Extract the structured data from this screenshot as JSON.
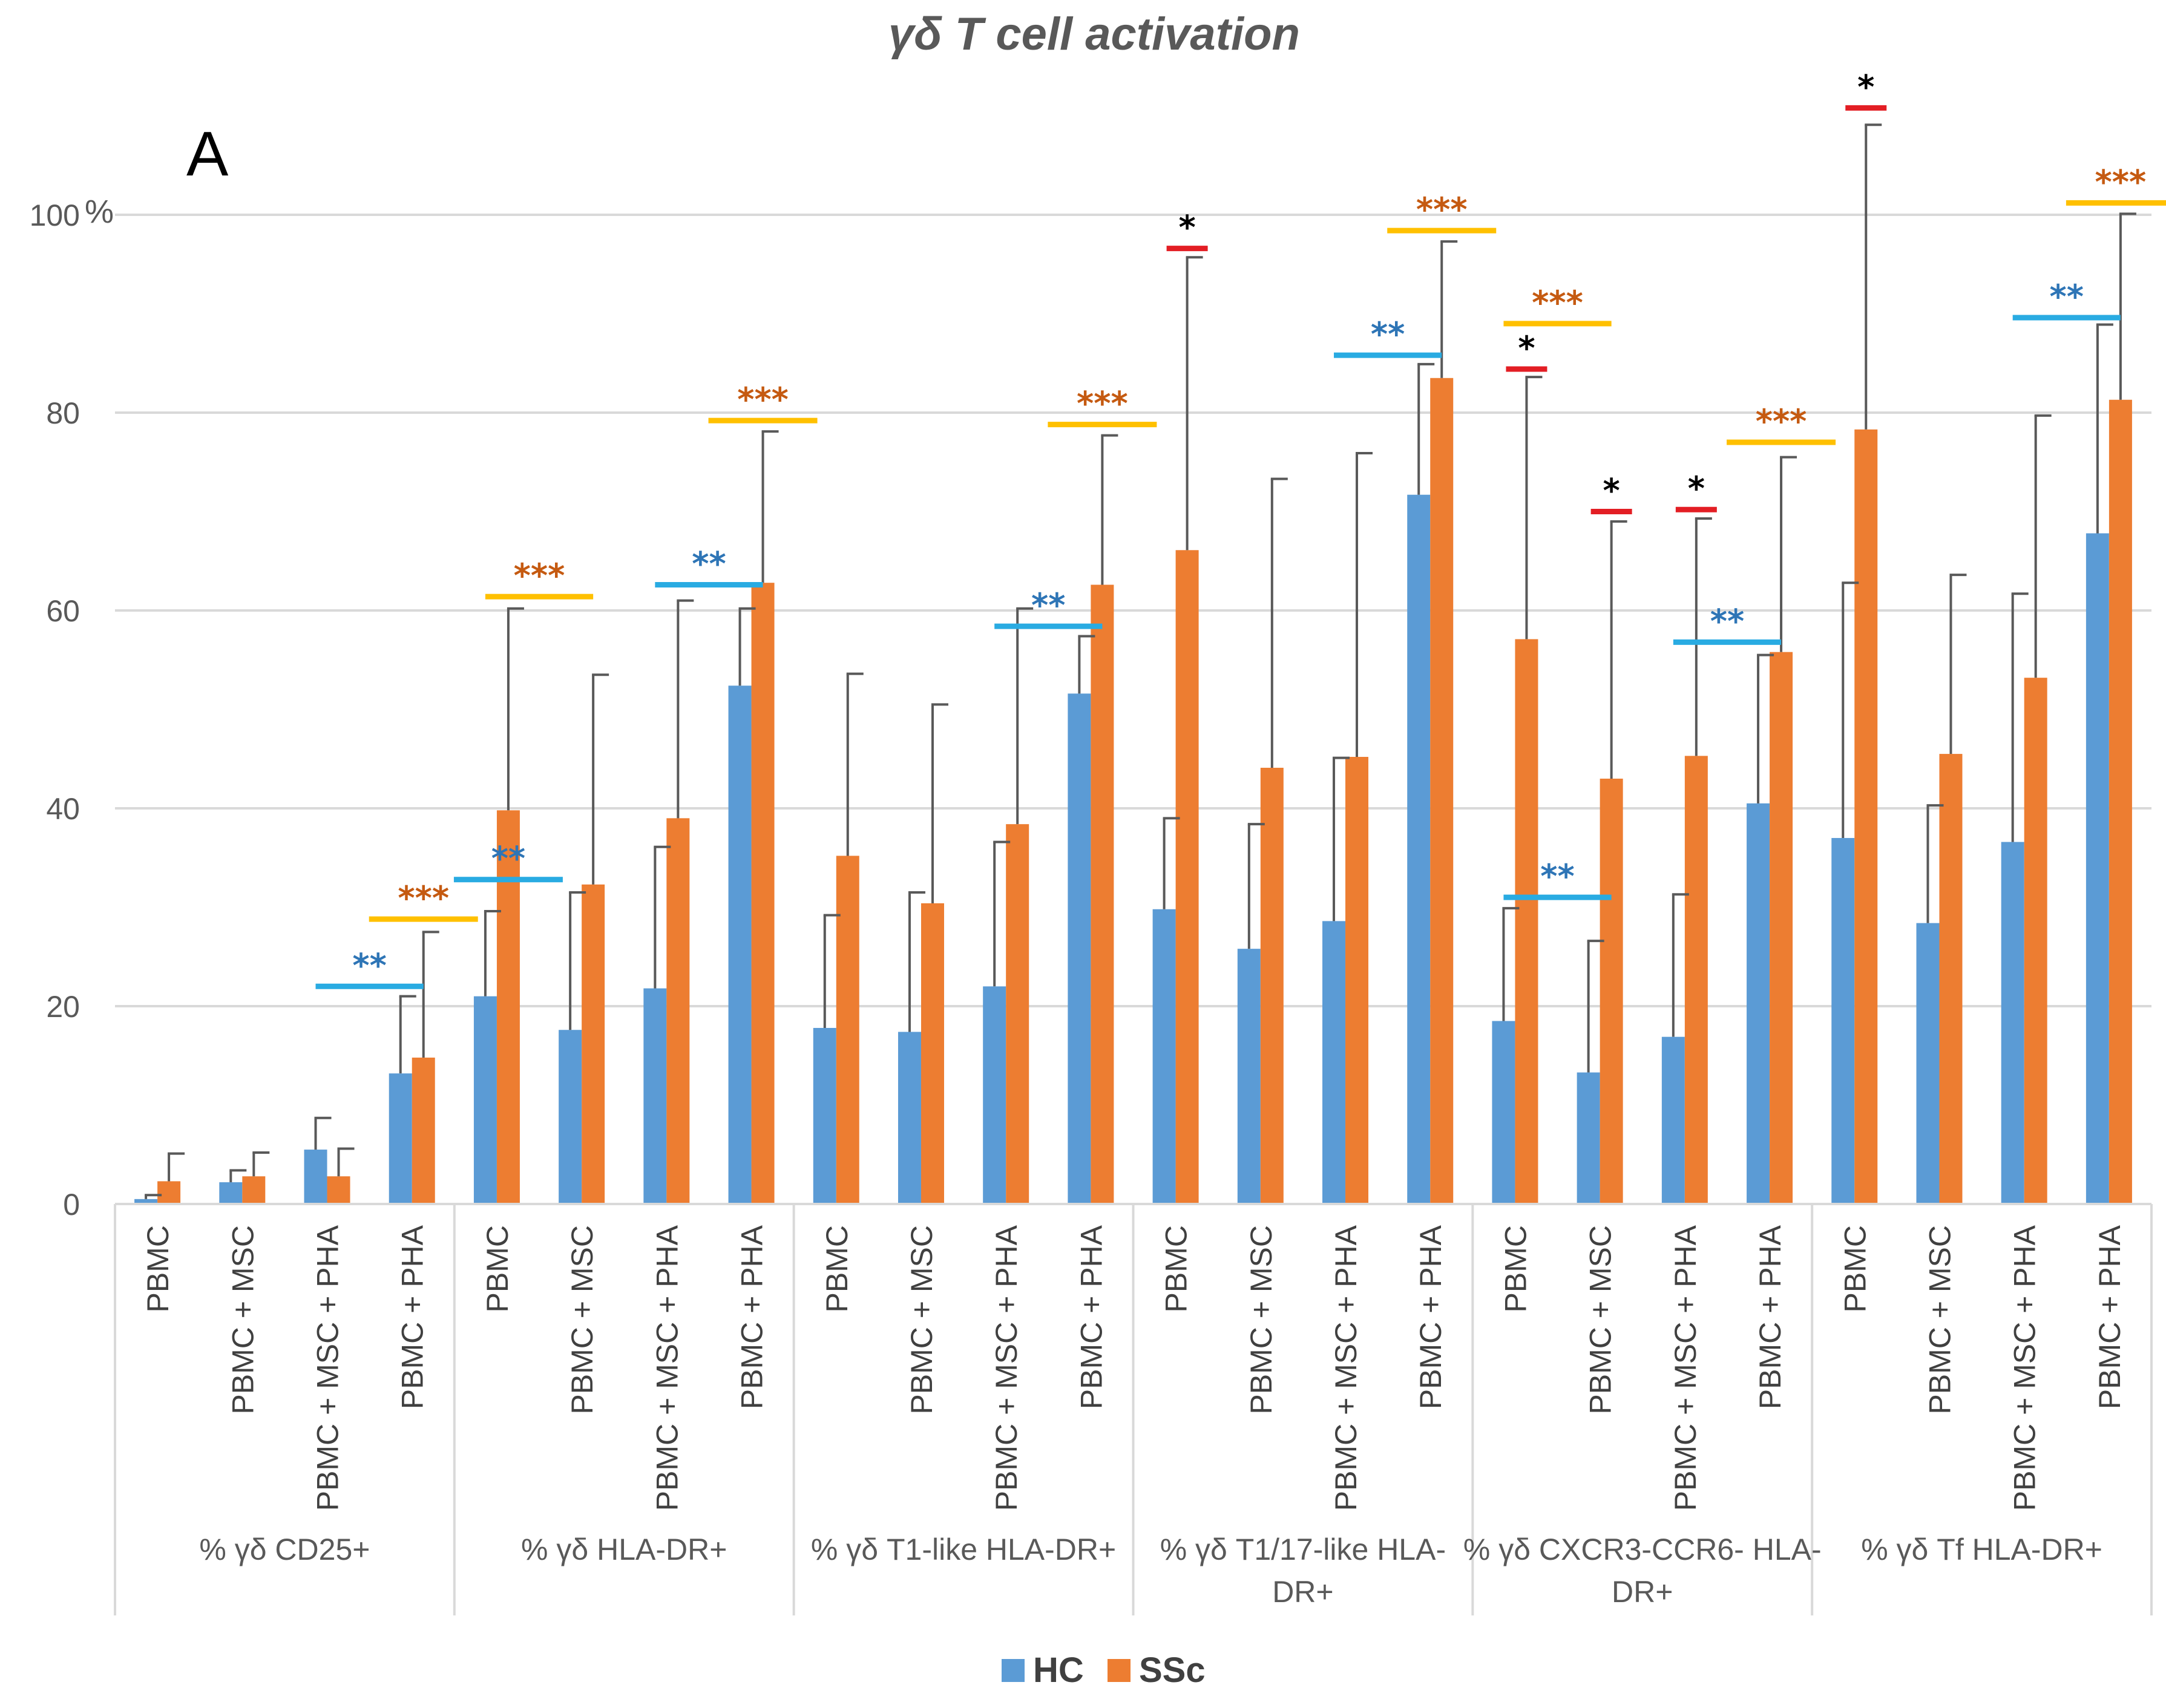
{
  "chart_data": {
    "type": "bar",
    "title": "γδ T cell activation",
    "panel_label": "A",
    "ylabel": "%",
    "ylim": [
      0,
      100
    ],
    "yticks": [
      0,
      20,
      40,
      60,
      80,
      100
    ],
    "grid": true,
    "legend_position": "bottom-center",
    "conditions": [
      "PBMC",
      "PBMC + MSC",
      "PBMC + MSC + PHA",
      "PBMC + PHA"
    ],
    "groups": [
      {
        "label_lines": [
          "% γδ CD25+"
        ],
        "HC": [
          0.5,
          2.2,
          5.5,
          13.2
        ],
        "SSc": [
          2.3,
          2.8,
          2.8,
          14.8
        ],
        "HC_err": [
          0.4,
          1.2,
          3.2,
          7.8
        ],
        "SSc_err": [
          2.8,
          2.4,
          2.8,
          12.7
        ]
      },
      {
        "label_lines": [
          "% γδ HLA-DR+"
        ],
        "HC": [
          21.0,
          17.6,
          21.8,
          52.4
        ],
        "SSc": [
          39.8,
          32.3,
          39.0,
          62.8
        ],
        "HC_err": [
          8.6,
          13.9,
          14.3,
          7.8
        ],
        "SSc_err": [
          20.4,
          21.2,
          22.0,
          15.3
        ]
      },
      {
        "label_lines": [
          "% γδ T1-like HLA-DR+"
        ],
        "HC": [
          17.8,
          17.4,
          22.0,
          51.6
        ],
        "SSc": [
          35.2,
          30.4,
          38.4,
          62.6
        ],
        "HC_err": [
          11.4,
          14.1,
          14.6,
          5.8
        ],
        "SSc_err": [
          18.4,
          20.1,
          21.8,
          15.1
        ]
      },
      {
        "label_lines": [
          "%  γδ T1/17-like HLA-",
          "DR+"
        ],
        "HC": [
          29.8,
          25.8,
          28.6,
          71.7
        ],
        "SSc": [
          66.1,
          44.1,
          45.2,
          83.5
        ],
        "HC_err": [
          9.2,
          12.6,
          16.5,
          13.2
        ],
        "SSc_err": [
          29.6,
          29.2,
          30.7,
          13.8
        ]
      },
      {
        "label_lines": [
          "% γδ CXCR3-CCR6- HLA-",
          "DR+"
        ],
        "HC": [
          18.5,
          13.3,
          16.9,
          40.5
        ],
        "SSc": [
          57.1,
          43.0,
          45.3,
          55.8
        ],
        "HC_err": [
          11.4,
          13.3,
          14.4,
          15.0
        ],
        "SSc_err": [
          26.5,
          26.0,
          24.0,
          19.7
        ]
      },
      {
        "label_lines": [
          "%  γδ Tf HLA-DR+"
        ],
        "HC": [
          37.0,
          28.4,
          36.6,
          67.8
        ],
        "SSc": [
          78.3,
          45.5,
          53.2,
          81.3
        ],
        "HC_err": [
          25.8,
          11.9,
          25.1,
          21.1
        ],
        "SSc_err": [
          30.8,
          18.1,
          26.5,
          18.8
        ]
      }
    ],
    "series": [
      {
        "name": "HC",
        "color": "#5B9BD5"
      },
      {
        "name": "SSc",
        "color": "#ED7D31"
      }
    ],
    "annotations": [
      {
        "group": 0,
        "from_bar": 2,
        "to_bar": 3,
        "y": 22.0,
        "text": "**",
        "color": "#29ABE2",
        "text_color": "#2E75B6"
      },
      {
        "group": 0,
        "from_bar": 3,
        "to_bar": 3,
        "y": 28.8,
        "text": "***",
        "color": "#FFC000",
        "text_color": "#C55A11"
      },
      {
        "group": 1,
        "from_bar": 0,
        "to_bar": 0,
        "y": 32.8,
        "text": "**",
        "color": "#29ABE2",
        "text_color": "#2E75B6"
      },
      {
        "group": 1,
        "from_bar": 0,
        "to_bar": 1,
        "y": 61.4,
        "text": "***",
        "color": "#FFC000",
        "text_color": "#C55A11"
      },
      {
        "group": 1,
        "from_bar": 2,
        "to_bar": 3,
        "y": 62.6,
        "text": "**",
        "color": "#29ABE2",
        "text_color": "#2E75B6"
      },
      {
        "group": 1,
        "from_bar": 3,
        "to_bar": 3,
        "y": 79.2,
        "text": "***",
        "color": "#FFC000",
        "text_color": "#C55A11"
      },
      {
        "group": 2,
        "from_bar": 2,
        "to_bar": 3,
        "y": 58.4,
        "text": "**",
        "color": "#29ABE2",
        "text_color": "#2E75B6"
      },
      {
        "group": 2,
        "from_bar": 3,
        "to_bar": 3,
        "y": 78.8,
        "text": "***",
        "color": "#FFC000",
        "text_color": "#C55A11"
      },
      {
        "group": 3,
        "from_bar": 0,
        "to_bar": 0,
        "y": 96.6,
        "text": "*",
        "color": "#E31E24",
        "text_color": "#000000"
      },
      {
        "group": 3,
        "from_bar": 2,
        "to_bar": 3,
        "y": 85.8,
        "text": "**",
        "color": "#29ABE2",
        "text_color": "#2E75B6"
      },
      {
        "group": 3,
        "from_bar": 3,
        "to_bar": 3,
        "y": 98.4,
        "text": "***",
        "color": "#FFC000",
        "text_color": "#C55A11"
      },
      {
        "group": 4,
        "from_bar": 0,
        "to_bar": 0,
        "y": 84.4,
        "text": "*",
        "color": "#E31E24",
        "text_color": "#000000"
      },
      {
        "group": 4,
        "from_bar": 0,
        "to_bar": 1,
        "y": 89.0,
        "text": "***",
        "color": "#FFC000",
        "text_color": "#C55A11"
      },
      {
        "group": 4,
        "from_bar": 0,
        "to_bar": 1,
        "y": 31.0,
        "text": "**",
        "color": "#29ABE2",
        "text_color": "#2E75B6"
      },
      {
        "group": 4,
        "from_bar": 1,
        "to_bar": 1,
        "y": 70.0,
        "text": "*",
        "color": "#E31E24",
        "text_color": "#000000"
      },
      {
        "group": 4,
        "from_bar": 2,
        "to_bar": 2,
        "y": 70.2,
        "text": "*",
        "color": "#E31E24",
        "text_color": "#000000"
      },
      {
        "group": 4,
        "from_bar": 2,
        "to_bar": 3,
        "y": 56.8,
        "text": "**",
        "color": "#29ABE2",
        "text_color": "#2E75B6"
      },
      {
        "group": 4,
        "from_bar": 3,
        "to_bar": 3,
        "y": 77.0,
        "text": "***",
        "color": "#FFC000",
        "text_color": "#C55A11"
      },
      {
        "group": 5,
        "from_bar": 0,
        "to_bar": 0,
        "y": 110.8,
        "text": "*",
        "color": "#E31E24",
        "text_color": "#000000"
      },
      {
        "group": 5,
        "from_bar": 2,
        "to_bar": 3,
        "y": 89.6,
        "text": "**",
        "color": "#29ABE2",
        "text_color": "#2E75B6"
      },
      {
        "group": 5,
        "from_bar": 3,
        "to_bar": 3,
        "y": 101.2,
        "text": "***",
        "color": "#FFC000",
        "text_color": "#C55A11"
      }
    ]
  }
}
